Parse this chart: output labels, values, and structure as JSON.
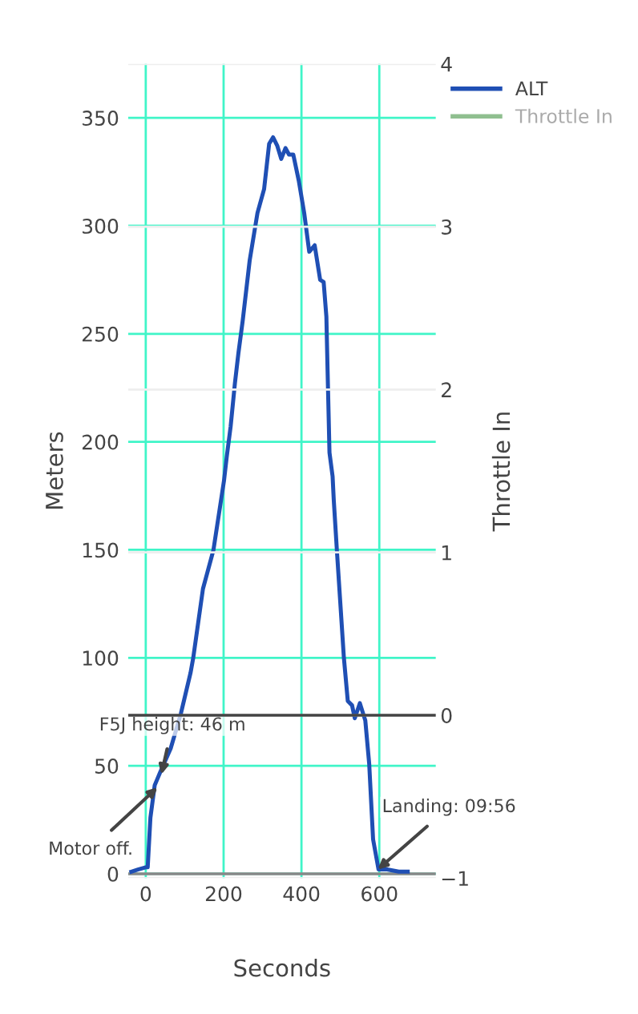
{
  "chart_data": {
    "type": "line",
    "xlabel": "Seconds",
    "ylabel": "Meters",
    "y2label": "Throttle In",
    "xlim": [
      -45,
      745
    ],
    "xticks": [
      0,
      200,
      400,
      600
    ],
    "ylim": [
      -2,
      375
    ],
    "yticks": [
      0,
      50,
      100,
      150,
      200,
      250,
      300,
      350
    ],
    "y2lim": [
      -1.0,
      4.0
    ],
    "y2ticks": [
      -1,
      0,
      1,
      2,
      3,
      4
    ],
    "grid": true,
    "legend": "top right",
    "marker": "none",
    "line_style": "solid",
    "series": [
      {
        "name": "ALT",
        "color": "#1f4fb4",
        "x": [
          -37,
          -20,
          0,
          5,
          12,
          23,
          37,
          64,
          90,
          115,
          122,
          147,
          174,
          201,
          208,
          218,
          229,
          238,
          249,
          267,
          287,
          304,
          317,
          327,
          338,
          348,
          359,
          368,
          379,
          393,
          407,
          420,
          434,
          448,
          457,
          464,
          467,
          472,
          480,
          483,
          492,
          509,
          519,
          530,
          537,
          550,
          564,
          574,
          584,
          598,
          620,
          650,
          673
        ],
        "values": [
          1,
          2,
          3,
          3,
          26,
          41,
          47,
          58,
          74,
          93,
          100,
          132,
          150,
          182,
          193,
          207,
          227,
          241,
          256,
          284,
          306,
          317,
          338,
          341,
          337,
          331,
          336,
          333,
          333,
          321,
          306,
          288,
          291,
          275,
          274,
          258,
          234,
          195,
          184,
          173,
          147,
          100,
          80,
          78,
          72,
          79,
          71,
          51,
          16,
          2,
          2,
          1,
          1
        ]
      },
      {
        "name": "Throttle In",
        "color": "#8fbf8f"
      }
    ],
    "ref_lines": [
      {
        "axis": "y",
        "value": 0,
        "color": "#888888"
      },
      {
        "axis": "y2",
        "value": 0,
        "color": "#444444"
      }
    ],
    "annotations": [
      {
        "text": "F5J height: 46 m",
        "x": 40,
        "y": 46
      },
      {
        "text": "Motor off.",
        "x": 30,
        "y": 40
      },
      {
        "text": "Landing: 09:56",
        "x": 596,
        "y": 2
      }
    ]
  }
}
